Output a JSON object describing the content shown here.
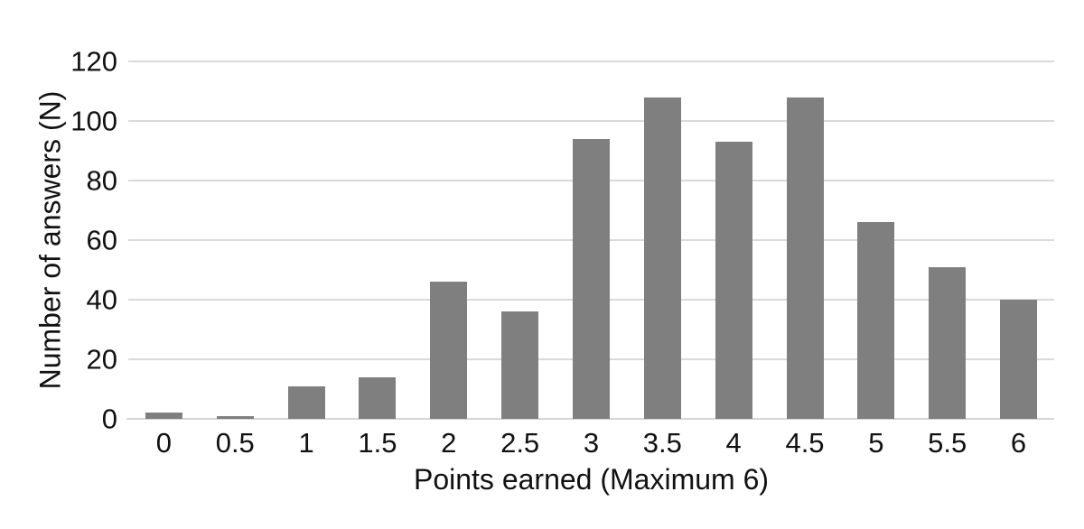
{
  "chart_data": {
    "type": "bar",
    "categories": [
      "0",
      "0.5",
      "1",
      "1.5",
      "2",
      "2.5",
      "3",
      "3.5",
      "4",
      "4.5",
      "5",
      "5.5",
      "6"
    ],
    "values": [
      2,
      1,
      11,
      14,
      46,
      36,
      94,
      108,
      93,
      108,
      66,
      51,
      40
    ],
    "title": "",
    "xlabel": "Points earned (Maximum 6)",
    "ylabel": "Number of answers (N)",
    "ylim": [
      0,
      120
    ],
    "yticks": [
      0,
      20,
      40,
      60,
      80,
      100,
      120
    ],
    "grid": true,
    "legend": false,
    "bar_color": "#7f7f7f",
    "gridline_color": "#dadada",
    "axis_line_color": "#d6d6d6",
    "background_color": "#ffffff",
    "text_color": "#111111"
  }
}
